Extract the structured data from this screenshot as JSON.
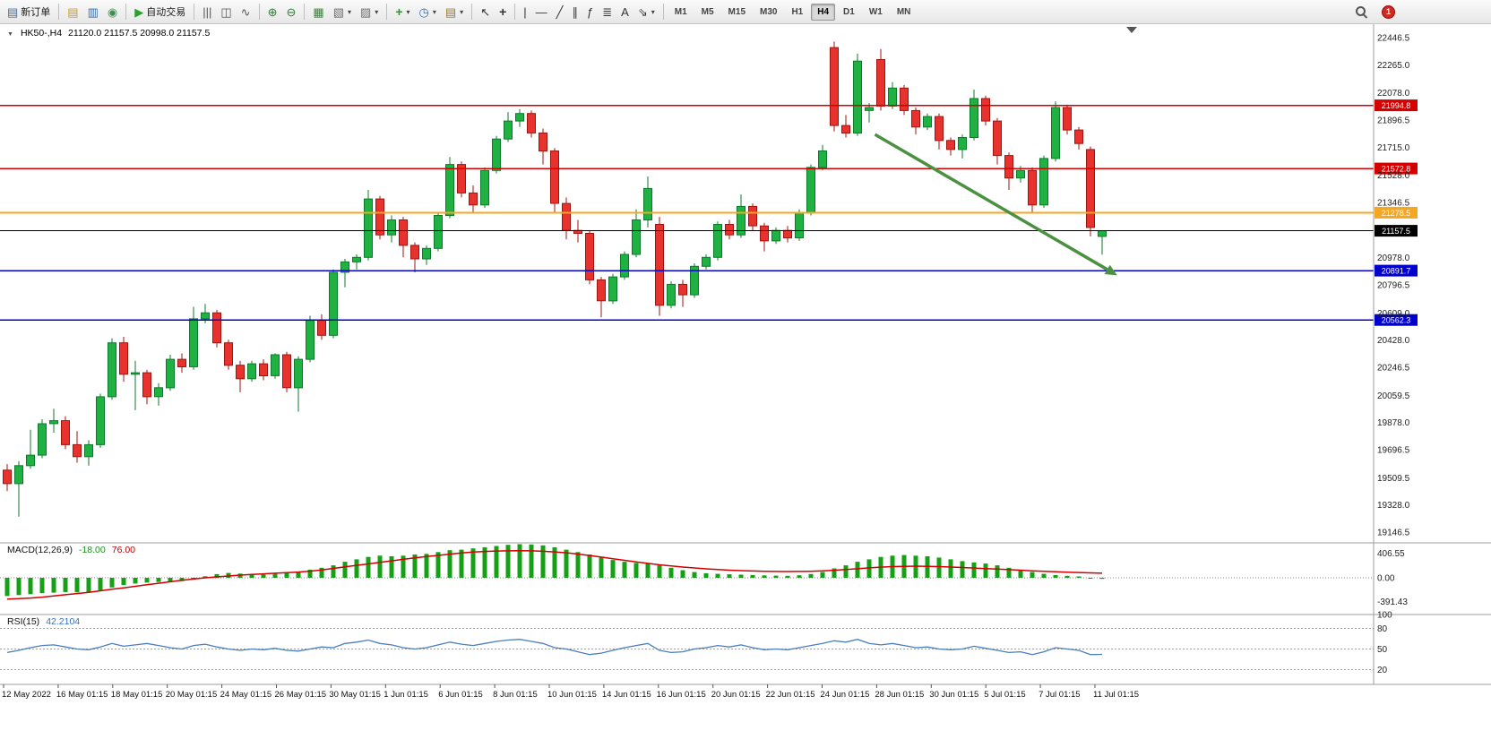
{
  "toolbar": {
    "groups": [
      {
        "items": [
          {
            "base": "new-order",
            "label": "新订单",
            "glyph": "▤",
            "color": "#3a6ea5"
          }
        ]
      },
      {
        "items": [
          {
            "base": "market-watch",
            "glyph": "▤",
            "color": "#d49a1a"
          },
          {
            "base": "data-window",
            "glyph": "▥",
            "color": "#3a6ea5"
          },
          {
            "base": "navigator",
            "glyph": "◉",
            "color": "#3f8f4f"
          }
        ]
      },
      {
        "items": [
          {
            "base": "autotrading",
            "label": "自动交易",
            "glyph": "▶",
            "color": "#2ca02c"
          }
        ]
      },
      {
        "items": [
          {
            "base": "bar-chart",
            "glyph": "|||",
            "color": "#555555"
          },
          {
            "base": "candlestick-chart",
            "glyph": "◫",
            "color": "#555555"
          },
          {
            "base": "line-chart",
            "glyph": "∿",
            "color": "#555555"
          }
        ]
      },
      {
        "items": [
          {
            "base": "zoom-in",
            "glyph": "⊕",
            "color": "#2e7d32"
          },
          {
            "base": "zoom-out",
            "glyph": "⊖",
            "color": "#2e7d32"
          }
        ]
      },
      {
        "items": [
          {
            "base": "tile-windows",
            "glyph": "▦",
            "color": "#3f7f3f"
          },
          {
            "base": "cascade-windows",
            "glyph": "▧",
            "color": "#707070",
            "caret": true
          },
          {
            "base": "profiles",
            "glyph": "▨",
            "color": "#707070",
            "caret": true
          }
        ]
      },
      {
        "items": [
          {
            "base": "add-indicator",
            "glyph": "+",
            "color": "#1fa01f",
            "caret": true,
            "bold": true
          },
          {
            "base": "period-selector",
            "glyph": "◷",
            "color": "#3a6ea5",
            "caret": true
          },
          {
            "base": "template",
            "glyph": "▤",
            "color": "#a07820",
            "caret": true
          }
        ]
      },
      {
        "items": [
          {
            "base": "cursor",
            "glyph": "↖",
            "color": "#333333"
          },
          {
            "base": "crosshair",
            "glyph": "+",
            "color": "#333333",
            "bold": true
          }
        ]
      },
      {
        "items": [
          {
            "base": "vertical-line",
            "glyph": "|",
            "color": "#333333"
          },
          {
            "base": "horizontal-line",
            "glyph": "—",
            "color": "#333333"
          },
          {
            "base": "trendline",
            "glyph": "╱",
            "color": "#333333"
          },
          {
            "base": "channel",
            "glyph": "∥",
            "color": "#333333"
          },
          {
            "base": "fibonacci",
            "glyph": "ƒ",
            "color": "#333333"
          },
          {
            "base": "shapes",
            "glyph": "≣",
            "color": "#333333"
          },
          {
            "base": "text",
            "glyph": "A",
            "color": "#333333"
          },
          {
            "base": "arrows",
            "glyph": "⇘",
            "color": "#333333",
            "caret": true
          }
        ]
      }
    ],
    "timeframes": [
      "M1",
      "M5",
      "M15",
      "M30",
      "H1",
      "H4",
      "D1",
      "W1",
      "MN"
    ],
    "active_timeframe": "H4",
    "badge_count": "1"
  },
  "chart": {
    "symbol_label": "HK50-,H4",
    "ohlc": "21120.0 21157.5 20998.0 21157.5"
  },
  "chart_data": {
    "type": "candlestick",
    "symbol": "HK50-",
    "timeframe": "H4",
    "price_axis": {
      "min": 19146.5,
      "max": 22446.5,
      "labels": [
        "22446.5",
        "22265.0",
        "22078.0",
        "21896.5",
        "21715.0",
        "21528.0",
        "21346.5",
        "20978.0",
        "20796.5",
        "20609.0",
        "20428.0",
        "20246.5",
        "20059.5",
        "19878.0",
        "19696.5",
        "19509.5",
        "19328.0",
        "19146.5"
      ]
    },
    "time_labels": [
      "12 May 2022",
      "16 May 01:15",
      "18 May 01:15",
      "20 May 01:15",
      "24 May 01:15",
      "26 May 01:15",
      "30 May 01:15",
      "1 Jun 01:15",
      "6 Jun 01:15",
      "8 Jun 01:15",
      "10 Jun 01:15",
      "14 Jun 01:15",
      "16 Jun 01:15",
      "20 Jun 01:15",
      "22 Jun 01:15",
      "24 Jun 01:15",
      "28 Jun 01:15",
      "30 Jun 01:15",
      "5 Jul 01:15",
      "7 Jul 01:15",
      "11 Jul 01:15"
    ],
    "candles": [
      [
        19560,
        19600,
        19420,
        19470
      ],
      [
        19470,
        19620,
        19250,
        19590
      ],
      [
        19590,
        19830,
        19570,
        19660
      ],
      [
        19660,
        19900,
        19640,
        19870
      ],
      [
        19870,
        19970,
        19810,
        19890
      ],
      [
        19890,
        19920,
        19700,
        19730
      ],
      [
        19730,
        19820,
        19610,
        19650
      ],
      [
        19650,
        19760,
        19590,
        19730
      ],
      [
        19730,
        20070,
        19710,
        20050
      ],
      [
        20050,
        20440,
        20030,
        20410
      ],
      [
        20410,
        20450,
        20150,
        20200
      ],
      [
        20200,
        20290,
        19960,
        20210
      ],
      [
        20210,
        20230,
        20000,
        20050
      ],
      [
        20050,
        20140,
        19990,
        20110
      ],
      [
        20110,
        20330,
        20090,
        20300
      ],
      [
        20300,
        20340,
        20210,
        20250
      ],
      [
        20250,
        20650,
        20230,
        20570
      ],
      [
        20570,
        20670,
        20540,
        20610
      ],
      [
        20610,
        20630,
        20380,
        20410
      ],
      [
        20410,
        20430,
        20230,
        20260
      ],
      [
        20260,
        20290,
        20080,
        20170
      ],
      [
        20170,
        20290,
        20150,
        20270
      ],
      [
        20270,
        20300,
        20160,
        20190
      ],
      [
        20190,
        20340,
        20170,
        20330
      ],
      [
        20330,
        20350,
        20080,
        20110
      ],
      [
        20110,
        20320,
        19950,
        20300
      ],
      [
        20300,
        20590,
        20280,
        20560
      ],
      [
        20560,
        20600,
        20430,
        20460
      ],
      [
        20460,
        20900,
        20440,
        20880
      ],
      [
        20880,
        20970,
        20780,
        20950
      ],
      [
        20950,
        21000,
        20900,
        20980
      ],
      [
        20980,
        21430,
        20960,
        21370
      ],
      [
        21370,
        21390,
        21100,
        21130
      ],
      [
        21130,
        21260,
        21080,
        21230
      ],
      [
        21230,
        21250,
        20980,
        21060
      ],
      [
        21060,
        21080,
        20880,
        20970
      ],
      [
        20970,
        21060,
        20930,
        21040
      ],
      [
        21040,
        21280,
        21020,
        21260
      ],
      [
        21260,
        21650,
        21240,
        21600
      ],
      [
        21600,
        21620,
        21380,
        21410
      ],
      [
        21410,
        21460,
        21280,
        21330
      ],
      [
        21330,
        21580,
        21310,
        21560
      ],
      [
        21560,
        21790,
        21540,
        21770
      ],
      [
        21770,
        21950,
        21750,
        21890
      ],
      [
        21890,
        21970,
        21850,
        21940
      ],
      [
        21940,
        21960,
        21780,
        21810
      ],
      [
        21810,
        21840,
        21600,
        21690
      ],
      [
        21690,
        21710,
        21280,
        21340
      ],
      [
        21340,
        21380,
        21100,
        21160
      ],
      [
        21160,
        21230,
        21080,
        21140
      ],
      [
        21140,
        21160,
        20800,
        20830
      ],
      [
        20830,
        20850,
        20580,
        20690
      ],
      [
        20690,
        20870,
        20670,
        20850
      ],
      [
        20850,
        21020,
        20830,
        21000
      ],
      [
        21000,
        21300,
        20980,
        21230
      ],
      [
        21230,
        21520,
        21180,
        21440
      ],
      [
        21200,
        21250,
        20590,
        20660
      ],
      [
        20660,
        20820,
        20640,
        20800
      ],
      [
        20800,
        20830,
        20650,
        20730
      ],
      [
        20730,
        20940,
        20710,
        20920
      ],
      [
        20920,
        21000,
        20900,
        20980
      ],
      [
        20980,
        21220,
        20960,
        21200
      ],
      [
        21200,
        21230,
        21100,
        21130
      ],
      [
        21130,
        21400,
        21110,
        21320
      ],
      [
        21320,
        21340,
        21160,
        21190
      ],
      [
        21190,
        21210,
        21020,
        21090
      ],
      [
        21090,
        21180,
        21070,
        21160
      ],
      [
        21160,
        21190,
        21080,
        21110
      ],
      [
        21110,
        21300,
        21090,
        21280
      ],
      [
        21280,
        21600,
        21260,
        21580
      ],
      [
        21580,
        21730,
        21560,
        21690
      ],
      [
        22380,
        22420,
        21820,
        21860
      ],
      [
        21860,
        21930,
        21780,
        21810
      ],
      [
        21810,
        22340,
        21790,
        22290
      ],
      [
        21960,
        22010,
        21880,
        21980
      ],
      [
        22300,
        22370,
        21960,
        21990
      ],
      [
        21990,
        22150,
        21970,
        22110
      ],
      [
        22110,
        22130,
        21930,
        21960
      ],
      [
        21960,
        21980,
        21800,
        21850
      ],
      [
        21850,
        21940,
        21830,
        21920
      ],
      [
        21920,
        21940,
        21700,
        21760
      ],
      [
        21760,
        21780,
        21660,
        21700
      ],
      [
        21700,
        21800,
        21640,
        21780
      ],
      [
        21780,
        22100,
        21760,
        22040
      ],
      [
        22040,
        22060,
        21860,
        21890
      ],
      [
        21890,
        21910,
        21600,
        21660
      ],
      [
        21660,
        21680,
        21430,
        21510
      ],
      [
        21510,
        21590,
        21480,
        21560
      ],
      [
        21560,
        21580,
        21280,
        21330
      ],
      [
        21330,
        21660,
        21310,
        21640
      ],
      [
        21640,
        22020,
        21620,
        21980
      ],
      [
        21980,
        22000,
        21800,
        21830
      ],
      [
        21830,
        21850,
        21700,
        21740
      ],
      [
        21700,
        21720,
        21120,
        21180
      ],
      [
        21120,
        21157.5,
        20998,
        21157.5
      ]
    ],
    "levels": [
      {
        "value": 21994.8,
        "label": "21994.8",
        "color": "#d40000",
        "width": 1.4
      },
      {
        "value": 21572.8,
        "label": "21572.8",
        "color": "#d40000",
        "width": 1.4
      },
      {
        "value": 21278.5,
        "label": "21278.5",
        "color": "#f5a623",
        "width": 2
      },
      {
        "value": 21157.5,
        "label": "21157.5",
        "color": "#000000",
        "width": 1.2,
        "current": true
      },
      {
        "value": 20891.7,
        "label": "20891.7",
        "color": "#0000cc",
        "width": 1.4
      },
      {
        "value": 20562.3,
        "label": "20562.3",
        "color": "#0000cc",
        "width": 1.4
      }
    ],
    "annotations": [
      {
        "type": "arrow",
        "from_index": 74.5,
        "from_price": 21800,
        "to_index": 95.3,
        "to_price": 20860,
        "color": "#4c9141"
      }
    ],
    "indicators": {
      "macd": {
        "label": "MACD(12,26,9)",
        "value_main": "-18.00",
        "value_signal": "76.00",
        "axis_labels": [
          "406.55",
          "0.00",
          "-391.43"
        ],
        "axis_values": [
          406.55,
          0,
          -391.43
        ],
        "histogram": [
          -300,
          -285,
          -270,
          -255,
          -245,
          -235,
          -240,
          -235,
          -205,
          -160,
          -120,
          -95,
          -80,
          -70,
          -75,
          -55,
          -20,
          25,
          60,
          80,
          70,
          60,
          55,
          65,
          85,
          105,
          135,
          165,
          205,
          265,
          305,
          345,
          365,
          355,
          365,
          385,
          395,
          425,
          455,
          465,
          485,
          505,
          525,
          545,
          555,
          550,
          535,
          505,
          465,
          425,
          385,
          335,
          295,
          265,
          245,
          235,
          205,
          165,
          125,
          95,
          75,
          65,
          58,
          52,
          46,
          40,
          36,
          32,
          42,
          62,
          95,
          155,
          205,
          265,
          305,
          345,
          365,
          375,
          365,
          355,
          335,
          305,
          275,
          255,
          235,
          205,
          165,
          125,
          95,
          65,
          45,
          32,
          22,
          -8,
          -18
        ],
        "signal": [
          -350,
          -345,
          -335,
          -320,
          -300,
          -280,
          -260,
          -240,
          -215,
          -190,
          -165,
          -140,
          -115,
          -90,
          -65,
          -40,
          -20,
          0,
          15,
          30,
          45,
          55,
          65,
          75,
          85,
          95,
          110,
          130,
          155,
          180,
          205,
          230,
          255,
          280,
          305,
          330,
          350,
          370,
          390,
          410,
          425,
          435,
          442,
          446,
          448,
          445,
          438,
          428,
          412,
          392,
          368,
          342,
          315,
          288,
          262,
          238,
          215,
          195,
          178,
          162,
          148,
          136,
          126,
          118,
          112,
          108,
          105,
          104,
          105,
          108,
          114,
          124,
          136,
          150,
          164,
          176,
          185,
          190,
          192,
          190,
          185,
          178,
          170,
          161,
          152,
          143,
          134,
          125,
          116,
          108,
          100,
          93,
          87,
          81,
          76
        ]
      },
      "rsi": {
        "label": "RSI(15)",
        "value": "42.2104",
        "levels": [
          80,
          50,
          20
        ],
        "axis_labels": [
          "100",
          "80",
          "50",
          "20"
        ],
        "axis_values": [
          100,
          80,
          50,
          20
        ],
        "values": [
          45,
          48,
          52,
          55,
          56,
          53,
          50,
          49,
          53,
          58,
          54,
          56,
          58,
          55,
          52,
          50,
          55,
          57,
          53,
          50,
          48,
          50,
          49,
          51,
          48,
          47,
          50,
          53,
          52,
          58,
          60,
          63,
          58,
          56,
          52,
          50,
          52,
          56,
          60,
          57,
          55,
          58,
          61,
          63,
          64,
          61,
          58,
          52,
          50,
          46,
          42,
          44,
          48,
          52,
          55,
          58,
          48,
          45,
          46,
          50,
          52,
          55,
          53,
          56,
          52,
          49,
          50,
          49,
          52,
          55,
          58,
          62,
          60,
          64,
          58,
          56,
          58,
          55,
          52,
          53,
          50,
          49,
          50,
          54,
          51,
          48,
          45,
          46,
          42,
          46,
          52,
          50,
          48,
          42,
          42.21
        ]
      }
    },
    "colors": {
      "bull": "#1fb141",
      "bull_border": "#0c7a2b",
      "bear": "#e8322e",
      "bear_border": "#9e1510",
      "macd_hist": "#16a016",
      "macd_signal": "#d40000",
      "rsi": "#4a7ebf",
      "arrow": "#4c9141"
    }
  }
}
